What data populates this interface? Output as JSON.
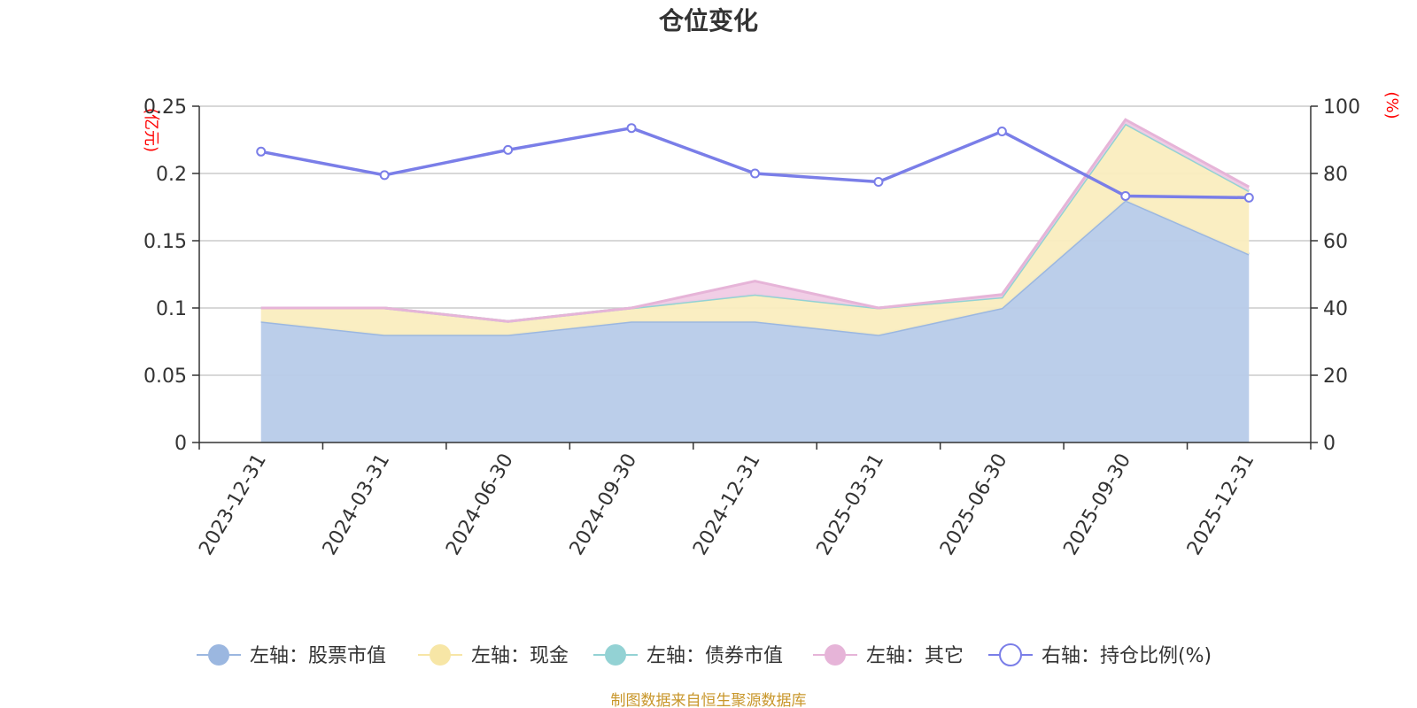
{
  "chart_data": {
    "type": "area",
    "title": "仓位变化",
    "left_unit": "(亿元)",
    "right_unit": "(%)",
    "categories": [
      "2023-12-31",
      "2024-03-31",
      "2024-06-30",
      "2024-09-30",
      "2024-12-31",
      "2025-03-31",
      "2025-06-30",
      "2025-09-30",
      "2025-12-31"
    ],
    "left_axis": {
      "min": 0,
      "max": 0.25,
      "ticks": [
        "0",
        "0.05",
        "0.1",
        "0.15",
        "0.2",
        "0.25"
      ]
    },
    "right_axis": {
      "min": 0,
      "max": 100,
      "ticks": [
        "0",
        "20",
        "40",
        "60",
        "80",
        "100"
      ]
    },
    "grid": true,
    "stacked": true,
    "series": [
      {
        "name": "左轴：股票市值",
        "axis": "left",
        "type": "area",
        "color": "#9bb7e0",
        "fill": "#b7cbe9",
        "values": [
          0.09,
          0.08,
          0.08,
          0.09,
          0.09,
          0.08,
          0.1,
          0.18,
          0.14
        ]
      },
      {
        "name": "左轴：现金",
        "axis": "left",
        "type": "area",
        "color": "#f7e6a6",
        "fill": "#faedbf",
        "values": [
          0.01,
          0.02,
          0.01,
          0.01,
          0.02,
          0.02,
          0.008,
          0.057,
          0.047
        ]
      },
      {
        "name": "左轴：债券市值",
        "axis": "left",
        "type": "area",
        "color": "#93d2d4",
        "fill": "#bfe6e7",
        "values": [
          0,
          0,
          0,
          0,
          0,
          0,
          0,
          0,
          0
        ]
      },
      {
        "name": "左轴：其它",
        "axis": "left",
        "type": "area",
        "color": "#e6b4d8",
        "fill": "#f0cbe5",
        "values": [
          0,
          0,
          0,
          0,
          0.01,
          0,
          0.002,
          0.003,
          0.003
        ]
      },
      {
        "name": "右轴：持仓比例(%)",
        "axis": "right",
        "type": "line",
        "color": "#7a7ee8",
        "values": [
          86.5,
          79.5,
          87.0,
          93.5,
          80.0,
          77.5,
          92.5,
          73.3,
          72.8
        ]
      }
    ],
    "legend_position": "bottom"
  },
  "source_note": "制图数据来自恒生聚源数据库"
}
